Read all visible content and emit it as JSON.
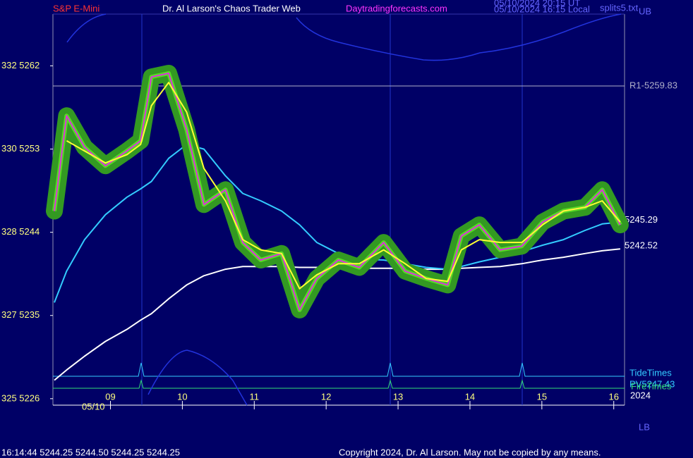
{
  "chart_data": {
    "type": "line",
    "symbol": "S&P E-Mini",
    "title": "Dr. Al Larson's Chaos Trader Web",
    "website": "Daytradingforecasts.com",
    "timestamp_ut": "05/10/2024 20:15 UT",
    "timestamp_local": "05/10/2024 16:15 Local",
    "file": "splits5.txt",
    "upper_band_label": "UB",
    "lower_band_label": "LB",
    "date_label": "05/10",
    "year_label": "2024",
    "tide_label": "TideTimes",
    "pv_label": "PV5247.43",
    "fire_label": "FireTimes",
    "quote": "16:14:44  5244.25 5244.50 5244.25 5244.25",
    "copyright": "Copyright 2024, Dr. Al Larson. May not be copied by any means.",
    "levels": [
      {
        "label": "R1-5259.83",
        "value": 5259.83,
        "color": "#b0b0c8",
        "line": true
      },
      {
        "label": "5245.29",
        "value": 5245.29,
        "color": "#ffffff",
        "line": false
      },
      {
        "label": "5242.52",
        "value": 5242.52,
        "color": "#ffffff",
        "line": false
      }
    ],
    "x": [
      8.22,
      8.39,
      8.64,
      8.93,
      9.23,
      9.42,
      9.57,
      9.81,
      10.06,
      10.3,
      10.6,
      10.84,
      11.09,
      11.38,
      11.63,
      11.87,
      12.17,
      12.46,
      12.8,
      13.1,
      13.39,
      13.69,
      13.88,
      14.13,
      14.42,
      14.72,
      15.01,
      15.3,
      15.6,
      15.84,
      16.09
    ],
    "series": [
      {
        "color": "#ffffff",
        "values": [
          5228.0,
          5229.1,
          5230.6,
          5232.2,
          5233.5,
          5234.5,
          5235.2,
          5236.8,
          5238.3,
          5239.3,
          5240.0,
          5240.3,
          5240.3,
          5240.3,
          5240.2,
          5240.2,
          5240.1,
          5240.1,
          5240.1,
          5240.1,
          5240.0,
          5240.0,
          5240.1,
          5240.2,
          5240.3,
          5240.6,
          5241.0,
          5241.3,
          5241.7,
          5242.0,
          5242.2
        ]
      },
      {
        "color": "#33ccff",
        "values": [
          5236.4,
          5239.8,
          5243.2,
          5245.9,
          5247.8,
          5248.7,
          5249.5,
          5252.0,
          5253.5,
          5253.0,
          5250.1,
          5248.2,
          5247.4,
          5246.3,
          5244.8,
          5242.9,
          5241.7,
          5241.1,
          5241.0,
          5240.6,
          5240.2,
          5240.0,
          5240.3,
          5240.8,
          5241.3,
          5241.9,
          5242.6,
          5243.2,
          5244.2,
          5244.9,
          5245.1
        ]
      },
      {
        "color": "#55dd22",
        "values": [
          5246.3,
          5256.6,
          5253.2,
          5251.2,
          5252.8,
          5253.9,
          5260.8,
          5261.2,
          5255.1,
          5247.0,
          5248.6,
          5242.9,
          5241.0,
          5241.7,
          5235.6,
          5239.0,
          5241.0,
          5240.2,
          5242.9,
          5239.8,
          5239.0,
          5238.3,
          5243.6,
          5244.8,
          5242.1,
          5242.5,
          5245.1,
          5246.3,
          5246.7,
          5248.6,
          5244.8
        ]
      },
      {
        "color": "#dd33dd",
        "values": [
          5246.3,
          5256.6,
          5253.2,
          5251.2,
          5252.8,
          5253.9,
          5260.8,
          5261.2,
          5255.1,
          5247.0,
          5248.6,
          5242.9,
          5241.0,
          5241.7,
          5235.6,
          5239.0,
          5241.0,
          5240.2,
          5242.9,
          5239.8,
          5239.0,
          5238.3,
          5243.6,
          5244.8,
          5242.1,
          5242.5,
          5245.1,
          5246.3,
          5246.7,
          5248.6,
          5244.8
        ]
      },
      {
        "color": "#ffff33",
        "values": [
          null,
          5253.9,
          5252.8,
          5251.5,
          5252.4,
          5253.5,
          5257.7,
          5260.2,
          5257.0,
          5250.9,
          5247.4,
          5243.2,
          5242.1,
          5241.7,
          5237.9,
          5239.4,
          5240.6,
          5240.6,
          5242.1,
          5240.6,
          5239.0,
          5238.7,
          5242.1,
          5243.2,
          5242.9,
          5242.9,
          5244.8,
          5246.3,
          5246.7,
          5247.4,
          5245.1
        ]
      }
    ],
    "xlim": [
      8.2,
      16.15
    ],
    "xticks": [
      {
        "value": 9,
        "label": "09"
      },
      10,
      11,
      12,
      13,
      14,
      15,
      16
    ],
    "ylim": [
      5225.3,
      5267.6
    ],
    "yticks": [
      {
        "value": 5226,
        "label": "325 5226"
      },
      {
        "value": 5235,
        "label": "327 5235"
      },
      {
        "value": 5244,
        "label": "328 5244"
      },
      {
        "value": 5253,
        "label": "330 5253"
      },
      {
        "value": 5262,
        "label": "332 5262"
      }
    ]
  }
}
